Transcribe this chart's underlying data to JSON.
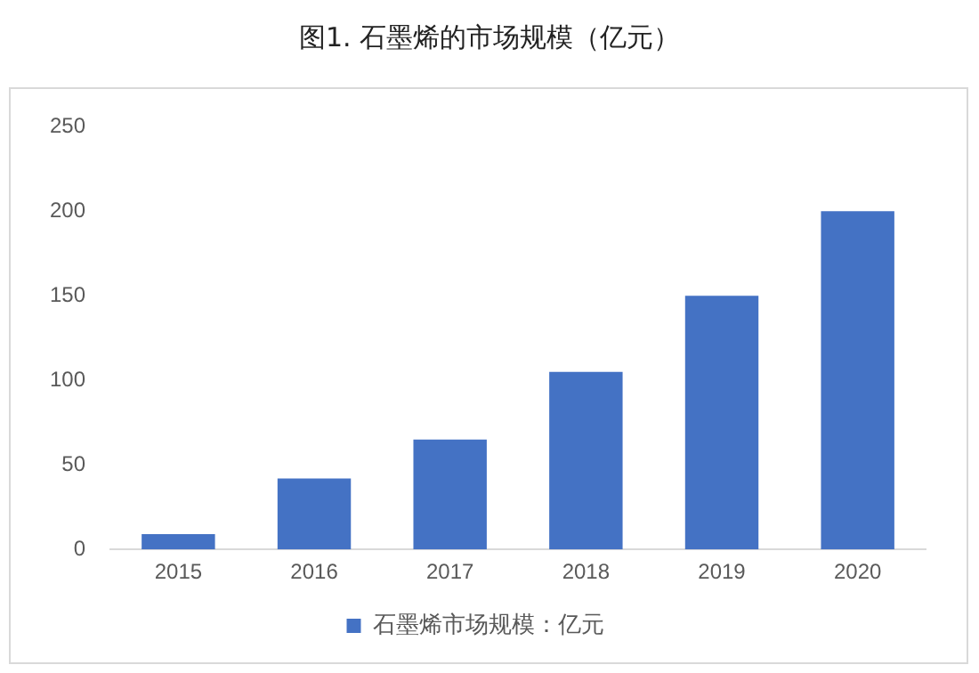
{
  "chart_data": {
    "type": "bar",
    "title": "图1. 石墨烯的市场规模（亿元）",
    "categories": [
      "2015",
      "2016",
      "2017",
      "2018",
      "2019",
      "2020"
    ],
    "series": [
      {
        "name": "石墨烯市场规模：亿元",
        "color": "#4472c4",
        "values": [
          9,
          42,
          65,
          105,
          150,
          200
        ]
      }
    ],
    "ylim": [
      0,
      250
    ],
    "yticks": [
      0,
      50,
      100,
      150,
      200,
      250
    ],
    "grid": false,
    "legend": "bottom"
  }
}
